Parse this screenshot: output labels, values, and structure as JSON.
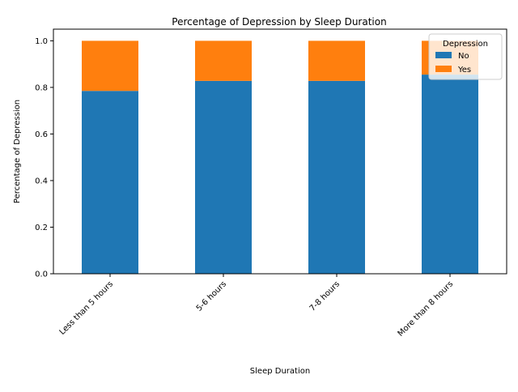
{
  "chart_data": {
    "type": "bar",
    "stacked": true,
    "title": "Percentage of Depression by Sleep Duration",
    "xlabel": "Sleep Duration",
    "ylabel": "Percentage of Depression",
    "categories": [
      "Less than 5 hours",
      "5-6 hours",
      "7-8 hours",
      "More than 8 hours"
    ],
    "series": [
      {
        "name": "No",
        "color": "#1f77b4",
        "values": [
          0.785,
          0.828,
          0.828,
          0.855
        ]
      },
      {
        "name": "Yes",
        "color": "#ff7f0e",
        "values": [
          0.215,
          0.172,
          0.172,
          0.145
        ]
      }
    ],
    "ylim": [
      0,
      1.05
    ],
    "yticks": [
      0.0,
      0.2,
      0.4,
      0.6,
      0.8,
      1.0
    ],
    "ytick_labels": [
      "0.0",
      "0.2",
      "0.4",
      "0.6",
      "0.8",
      "1.0"
    ],
    "xtick_rotation": 45,
    "grid": false,
    "legend": {
      "title": "Depression",
      "placement": "top-right"
    }
  }
}
